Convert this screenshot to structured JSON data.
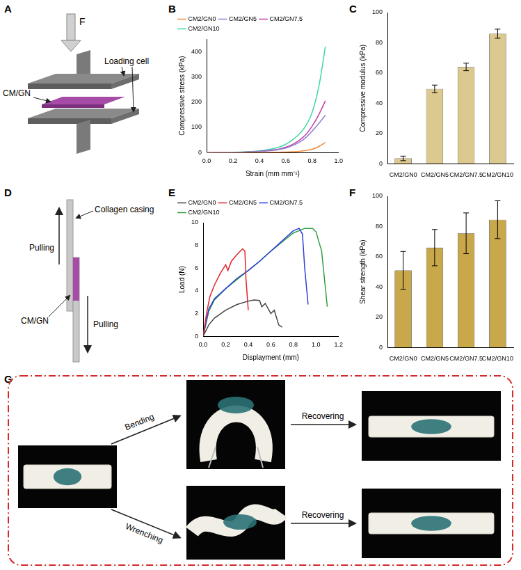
{
  "panel_labels": [
    "A",
    "B",
    "C",
    "D",
    "E",
    "F",
    "G"
  ],
  "schematic_a": {
    "force": "F",
    "sample": "CM/GN",
    "fixture": "Loading cell"
  },
  "chart_data": [
    {
      "type": "line",
      "x_label": "Strain (mm mm⁻¹)",
      "y_label": "Compressive stress (kPa)",
      "x": [
        0,
        0.1,
        0.2,
        0.3,
        0.4,
        0.5,
        0.55,
        0.6,
        0.65,
        0.7,
        0.75,
        0.8,
        0.85,
        0.9
      ],
      "series": [
        {
          "name": "CM2/GN0",
          "color": "#f08a3c",
          "values": [
            0,
            0,
            0,
            0,
            0.5,
            1,
            1.5,
            2,
            3,
            5,
            8,
            13,
            24,
            40
          ]
        },
        {
          "name": "CM2/GN5",
          "color": "#8f7fd0",
          "values": [
            0,
            0.3,
            1,
            2,
            4,
            8,
            12,
            18,
            27,
            40,
            58,
            85,
            115,
            148
          ]
        },
        {
          "name": "CM2/GN7.5",
          "color": "#c23ea8",
          "values": [
            0,
            0.3,
            1,
            2,
            5,
            10,
            14,
            21,
            32,
            48,
            70,
            105,
            150,
            205
          ]
        },
        {
          "name": "CM2/GN10",
          "color": "#3fd6a6",
          "values": [
            0,
            0.5,
            1,
            3,
            7,
            15,
            22,
            33,
            50,
            72,
            105,
            160,
            260,
            420
          ]
        }
      ],
      "xlim": [
        0,
        1.0
      ],
      "xticks": [
        {
          "value": 0,
          "label": "0.0"
        },
        {
          "value": 0.2,
          "label": "0.2"
        },
        {
          "value": 0.4,
          "label": "0.4"
        },
        {
          "value": 0.6,
          "label": "0.6"
        },
        {
          "value": 0.8,
          "label": "0.8"
        },
        {
          "value": 1.0,
          "label": "1.0"
        }
      ],
      "ylim": [
        0,
        450
      ],
      "yticks": [
        0,
        100,
        200,
        300,
        400
      ],
      "legend": "upper left",
      "grid": false
    },
    {
      "type": "bar",
      "y_label": "Compressive modulus (kPa)",
      "categories": [
        "CM2/GN0",
        "CM2/GN5",
        "CM2/GN7.5",
        "CM2/GN10"
      ],
      "values": [
        3.5,
        49.5,
        64,
        86
      ],
      "errors": [
        1.5,
        2.5,
        2.5,
        3
      ],
      "color": "#dcc98f",
      "ylim": [
        0,
        100
      ],
      "yticks": [
        0,
        20,
        40,
        60,
        80,
        100
      ],
      "grid": false
    },
    {
      "type": "line",
      "x_label": "Displayment (mm)",
      "y_label": "Load (N)",
      "series": [
        {
          "name": "CM2/GN0",
          "color": "#444444",
          "x": [
            0,
            0.05,
            0.1,
            0.2,
            0.3,
            0.4,
            0.45,
            0.5,
            0.52,
            0.55,
            0.6,
            0.63,
            0.67,
            0.7
          ],
          "values": [
            0,
            1,
            1.6,
            2.3,
            2.8,
            3.1,
            3.2,
            3.15,
            2.6,
            2.9,
            2.0,
            2.3,
            1.0,
            0.8
          ]
        },
        {
          "name": "CM2/GN5",
          "color": "#e3242b",
          "x": [
            0,
            0.03,
            0.06,
            0.1,
            0.15,
            0.2,
            0.22,
            0.25,
            0.3,
            0.35,
            0.37,
            0.38,
            0.4
          ],
          "values": [
            0,
            2,
            3.5,
            4.5,
            5.5,
            6.3,
            5.8,
            6.6,
            7.2,
            7.7,
            7.5,
            5,
            2.3
          ]
        },
        {
          "name": "CM2/GN7.5",
          "color": "#2d3fd8",
          "x": [
            0,
            0.05,
            0.1,
            0.2,
            0.3,
            0.4,
            0.5,
            0.6,
            0.7,
            0.8,
            0.85,
            0.88,
            0.9,
            0.93
          ],
          "values": [
            0,
            2.4,
            3.3,
            4.2,
            5.1,
            5.8,
            6.6,
            7.5,
            8.4,
            9.3,
            9.5,
            9.0,
            6,
            2.8
          ]
        },
        {
          "name": "CM2/GN10",
          "color": "#2f9e44",
          "x": [
            0,
            0.05,
            0.1,
            0.2,
            0.3,
            0.4,
            0.5,
            0.6,
            0.7,
            0.8,
            0.9,
            0.97,
            1.0,
            1.05,
            1.1
          ],
          "values": [
            0,
            2.2,
            3.2,
            4.2,
            5.0,
            5.8,
            6.6,
            7.5,
            8.3,
            9.1,
            9.5,
            9.5,
            9.2,
            7.5,
            2.6
          ]
        }
      ],
      "xlim": [
        0,
        1.2
      ],
      "xticks": [
        {
          "value": 0,
          "label": "0.0"
        },
        {
          "value": 0.2,
          "label": "0.2"
        },
        {
          "value": 0.4,
          "label": "0.4"
        },
        {
          "value": 0.6,
          "label": "0.6"
        },
        {
          "value": 0.8,
          "label": "0.8"
        },
        {
          "value": 1.0,
          "label": "1.0"
        },
        {
          "value": 1.2,
          "label": "1.2"
        }
      ],
      "ylim": [
        0,
        10
      ],
      "yticks": [
        0,
        2,
        4,
        6,
        8,
        10
      ],
      "legend": "upper left",
      "grid": false
    },
    {
      "type": "bar",
      "y_label": "Shear strength (kPa)",
      "categories": [
        "CM2/GN0",
        "CM2/GN5",
        "CM2/GN7.5",
        "CM2/GN10"
      ],
      "values": [
        51,
        66,
        75.5,
        84.5
      ],
      "errors": [
        12.5,
        12,
        13.5,
        12.5
      ],
      "color": "#c8a84a",
      "ylim": [
        0,
        100
      ],
      "yticks": [
        0,
        20,
        40,
        60,
        80,
        100
      ],
      "grid": false
    }
  ],
  "schematic_d": {
    "film": "Collagen casing",
    "pull_up": "Pulling",
    "pull_down": "Pulling",
    "sample": "CM/GN"
  },
  "panel_g": {
    "top_action": "Bending",
    "top_result": "Recovering",
    "bottom_action": "Wrenching",
    "bottom_result": "Recovering"
  }
}
